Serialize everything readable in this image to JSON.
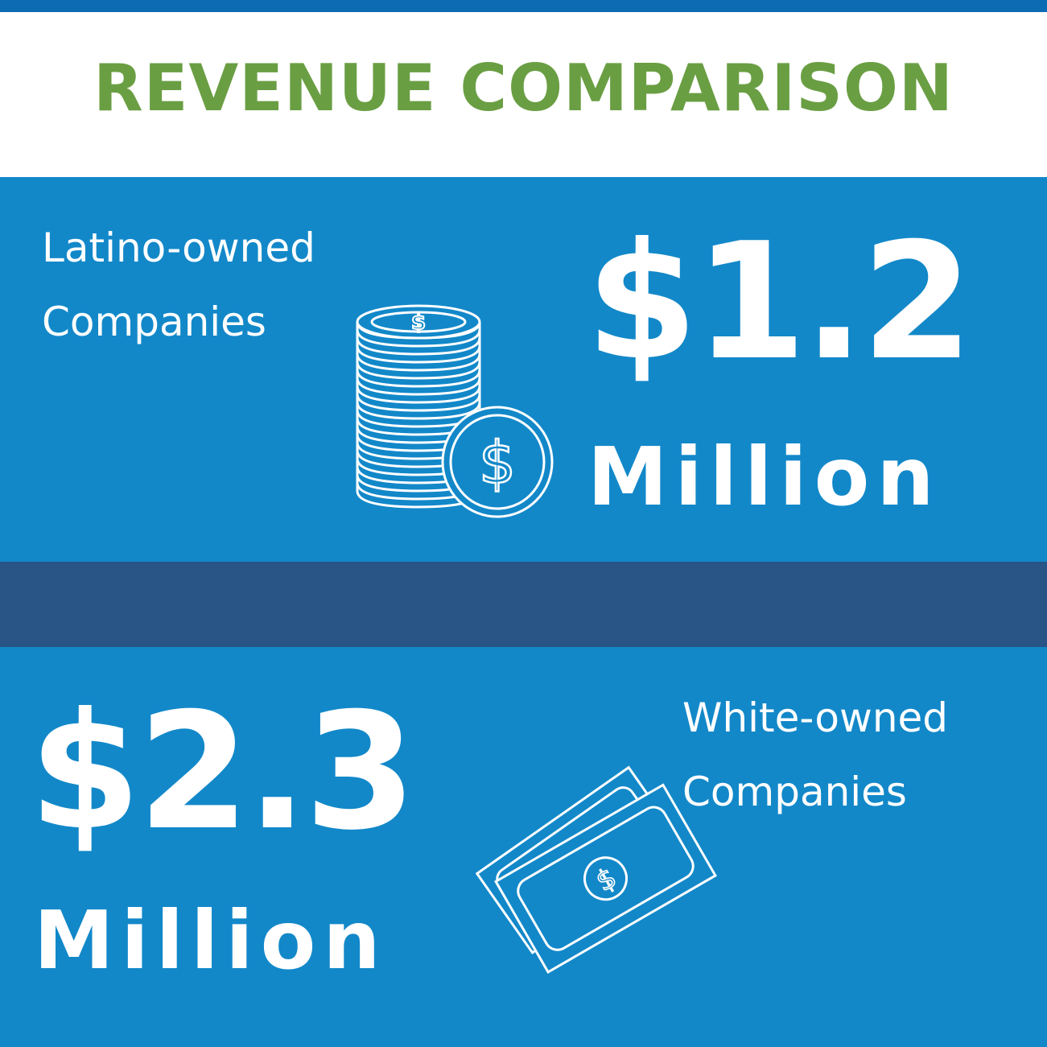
{
  "title": "REVENUE COMPARISON",
  "latino": {
    "label": "Latino-owned\nCompanies",
    "amount": "$1.2",
    "unit": "Million",
    "icon": "coin-stack-icon"
  },
  "white": {
    "label": "White-owned\nCompanies",
    "amount": "$2.3",
    "unit": "Million",
    "icon": "banknotes-icon"
  },
  "colors": {
    "title_green": "#6a9e43",
    "panel_blue": "#1288c9",
    "divider_navy": "#285486",
    "top_bar_blue": "#0c6bb3"
  }
}
